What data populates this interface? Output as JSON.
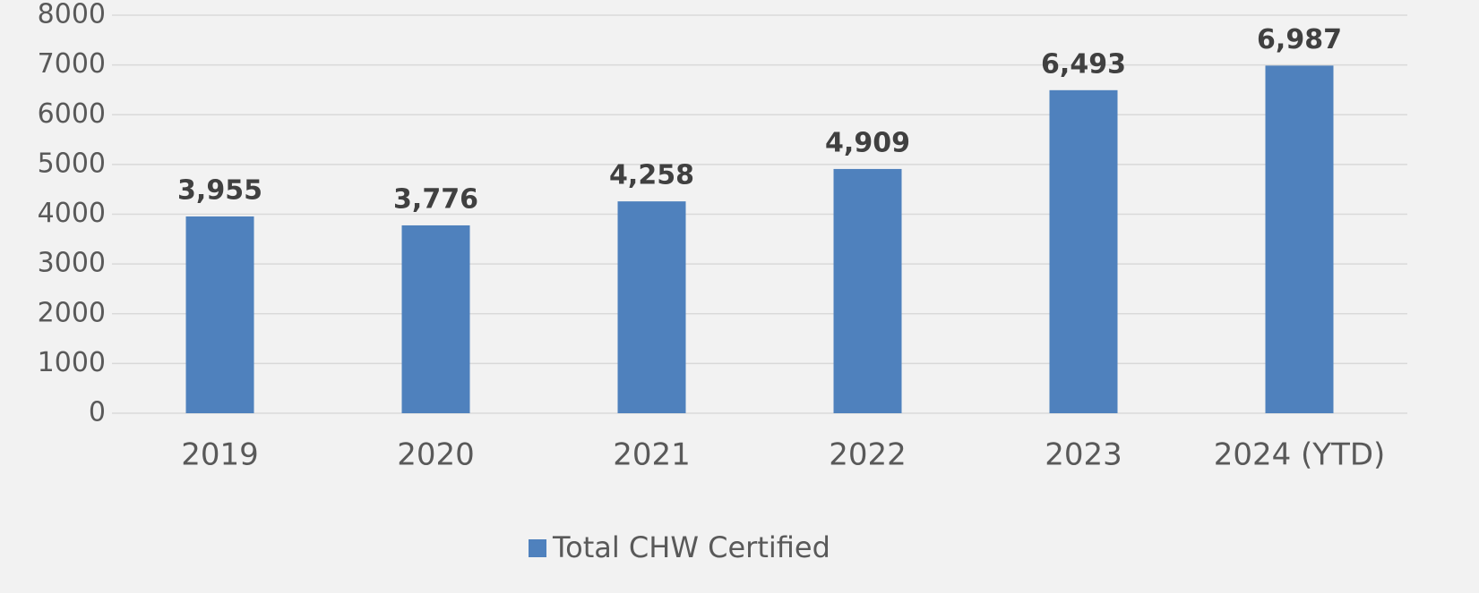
{
  "chart_data": {
    "type": "bar",
    "categories": [
      "2019",
      "2020",
      "2021",
      "2022",
      "2023",
      "2024 (YTD)"
    ],
    "series": [
      {
        "name": "Total CHW Certified",
        "color": "#4f81bd",
        "values": [
          3955,
          3776,
          4258,
          4909,
          6493,
          6987
        ],
        "value_labels": [
          "3,955",
          "3,776",
          "4,258",
          "4,909",
          "6,493",
          "6,987"
        ]
      }
    ],
    "ylim": [
      0,
      8000
    ],
    "yticks": [
      0,
      1000,
      2000,
      3000,
      4000,
      5000,
      6000,
      7000,
      8000
    ],
    "grid": true,
    "legend": "bottom"
  }
}
